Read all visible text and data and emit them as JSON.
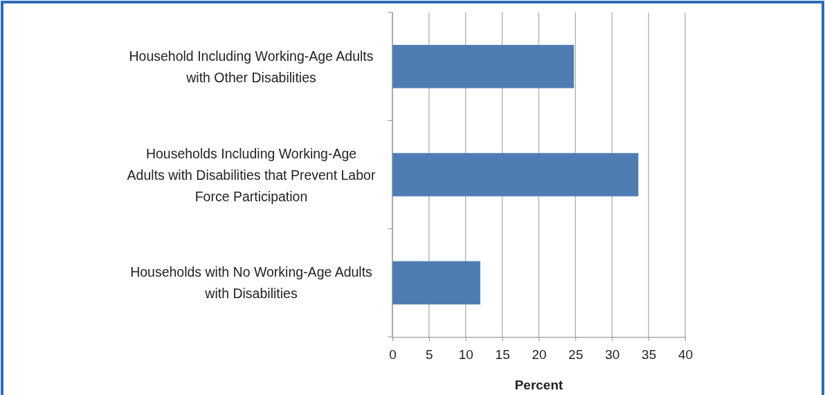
{
  "chart_data": {
    "type": "bar",
    "orientation": "horizontal",
    "xlabel": "Percent",
    "categories": [
      "Household Including Working-Age Adults with Other Disabilities",
      "Households Including Working-Age Adults with Disabilities that Prevent Labor Force Participation",
      "Households with No Working-Age Adults with Disabilities"
    ],
    "values": [
      24.8,
      33.6,
      12.0
    ],
    "color": "#4f7db3",
    "xlim": [
      0,
      40
    ],
    "xticks": [
      0,
      5,
      10,
      15,
      20,
      25,
      30,
      35,
      40
    ],
    "grid": "x"
  }
}
